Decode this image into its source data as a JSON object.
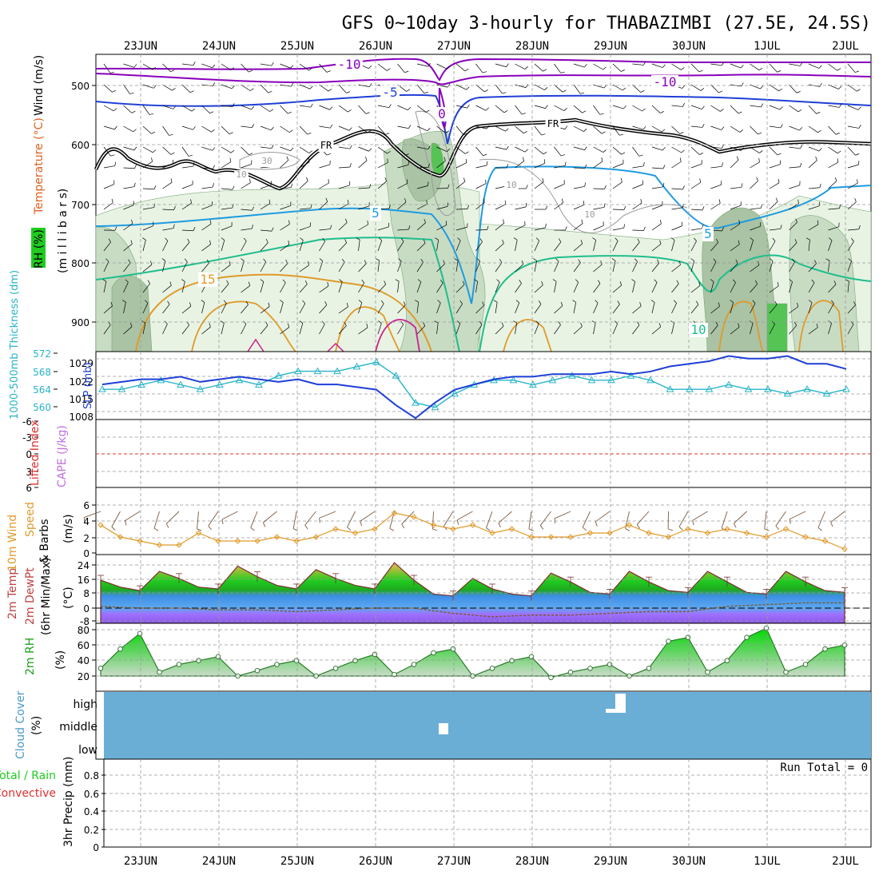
{
  "title": "GFS 0~10day 3-hourly for THABAZIMBI (27.5E, 24.5S)",
  "dates": [
    "23JUN",
    "24JUN",
    "25JUN",
    "26JUN",
    "27JUN",
    "28JUN",
    "29JUN",
    "30JUN",
    "1JUL",
    "2JUL"
  ],
  "colors": {
    "purple": "#8800bb",
    "blue": "#1f3fd6",
    "lightblue": "#1e9be0",
    "teal": "#1fbd8c",
    "orange": "#e09a2a",
    "magenta": "#cc1f8a",
    "cyan": "#28b4c8",
    "cloud": "#6aaed6",
    "green": "#1fcc1f",
    "dewpoint": "#7b5aa0"
  },
  "panels": {
    "upper": {
      "ylabel_rh": "RH (%)",
      "ylabel_temp": "Temperature (°C)",
      "ylabel_wind": "Wind (m/s)",
      "ylabel_mb": "(m i l l i b a r s)",
      "ticks": [
        "500",
        "600",
        "700",
        "800",
        "900"
      ],
      "contour_labels": [
        "-10",
        "-10",
        "-5",
        "5",
        "5",
        "10",
        "10",
        "10",
        "10",
        "15",
        "30",
        "FR",
        "FR",
        "0"
      ]
    },
    "slp": {
      "ylabel_thick": "1000-500mb Thickness (dm)",
      "ylabel_slp": "SLP (mb)",
      "left_ticks": [
        "572",
        "568",
        "564",
        "560"
      ],
      "right_ticks": [
        "1029",
        "1022",
        "1015",
        "1008"
      ]
    },
    "cape": {
      "ylabel_li": "Lifted Index",
      "ylabel_cape": "CAPE (J/kg)",
      "ticks": [
        "-6",
        "-3",
        "0",
        "3",
        "6"
      ]
    },
    "wind10": {
      "ylabel_a": "10m Wind",
      "ylabel_b": "Speed",
      "ylabel_c": "& Barbs",
      "units": "(m/s)",
      "ticks": [
        "6",
        "4",
        "2",
        "0"
      ]
    },
    "temp": {
      "ylabel_a": "2m Temp",
      "ylabel_b": "2m DewPt",
      "ylabel_c": "(6hr Min/Max)",
      "units": "(°C)",
      "ticks": [
        "24",
        "16",
        "8",
        "0",
        "-8"
      ]
    },
    "rh": {
      "ylabel": "2m RH",
      "units": "(%)",
      "ticks": [
        "80",
        "60",
        "40",
        "20"
      ]
    },
    "cloud": {
      "ylabel": "Cloud Cover",
      "units": "(%)",
      "levels": [
        "high",
        "middle",
        "low"
      ]
    },
    "precip": {
      "ylabel_a": "Total / Rain",
      "ylabel_b": "Convective",
      "ylabel_c": "3hr Precip (mm)",
      "ticks": [
        "0.8",
        "0.6",
        "0.4",
        "0.2",
        "0"
      ],
      "run_total": "Run Total = 0"
    }
  },
  "chart_data": [
    {
      "type": "line",
      "name": "SLP",
      "x_days": [
        0,
        0.25,
        0.5,
        0.75,
        1,
        1.25,
        1.5,
        1.75,
        2,
        2.25,
        2.5,
        2.75,
        3,
        3.25,
        3.5,
        3.75,
        4,
        4.25,
        4.5,
        4.75,
        5,
        5.25,
        5.5,
        5.75,
        6,
        6.25,
        6.5,
        6.75,
        7,
        7.25,
        7.5,
        7.75,
        8,
        8.25,
        8.5,
        8.75,
        9,
        9.25,
        9.5
      ],
      "values": [
        1020,
        1021,
        1022,
        1022,
        1023,
        1021,
        1022,
        1023,
        1022,
        1021,
        1022,
        1020,
        1020,
        1019,
        1018,
        1012,
        1007,
        1013,
        1018,
        1020,
        1022,
        1023,
        1023,
        1024,
        1024,
        1024,
        1025,
        1024,
        1025,
        1027,
        1028,
        1029,
        1031,
        1030,
        1030,
        1031,
        1028,
        1028,
        1026
      ],
      "ylim": [
        1008,
        1029
      ]
    },
    {
      "type": "line",
      "name": "1000-500mb Thickness",
      "x_days": [
        0,
        0.25,
        0.5,
        0.75,
        1,
        1.25,
        1.5,
        1.75,
        2,
        2.25,
        2.5,
        2.75,
        3,
        3.25,
        3.5,
        3.75,
        4,
        4.25,
        4.5,
        4.75,
        5,
        5.25,
        5.5,
        5.75,
        6,
        6.25,
        6.5,
        6.75,
        7,
        7.25,
        7.5,
        7.75,
        8,
        8.25,
        8.5,
        8.75,
        9,
        9.25,
        9.5
      ],
      "values": [
        564,
        564,
        565,
        566,
        565,
        564,
        565,
        566,
        565,
        567,
        568,
        568,
        568,
        569,
        570,
        567,
        561,
        560,
        563,
        565,
        566,
        566,
        565,
        566,
        567,
        566,
        566,
        567,
        566,
        564,
        564,
        564,
        565,
        564,
        564,
        563,
        564,
        563,
        564
      ],
      "ylim": [
        558,
        572
      ]
    },
    {
      "type": "line",
      "name": "10m Wind Speed",
      "x_days": [
        0,
        0.25,
        0.5,
        0.75,
        1,
        1.25,
        1.5,
        1.75,
        2,
        2.25,
        2.5,
        2.75,
        3,
        3.25,
        3.5,
        3.75,
        4,
        4.25,
        4.5,
        4.75,
        5,
        5.25,
        5.5,
        5.75,
        6,
        6.25,
        6.5,
        6.75,
        7,
        7.25,
        7.5,
        7.75,
        8,
        8.25,
        8.5,
        8.75,
        9,
        9.25,
        9.5
      ],
      "values": [
        3.5,
        2,
        1.5,
        1,
        1,
        2.5,
        1.5,
        1.5,
        1.5,
        2,
        1.5,
        2,
        3,
        2.5,
        3,
        5,
        4.5,
        3.5,
        3,
        3.5,
        2.5,
        3,
        2,
        2,
        2,
        2.5,
        2.5,
        3.5,
        2.5,
        2,
        3,
        2.5,
        3,
        2.5,
        2,
        3,
        2,
        1.5,
        0.5
      ],
      "ylim": [
        0,
        8
      ]
    },
    {
      "type": "area",
      "name": "2m Temp",
      "x_days": [
        0,
        0.25,
        0.5,
        0.75,
        1,
        1.25,
        1.5,
        1.75,
        2,
        2.25,
        2.5,
        2.75,
        3,
        3.25,
        3.5,
        3.75,
        4,
        4.25,
        4.5,
        4.75,
        5,
        5.25,
        5.5,
        5.75,
        6,
        6.25,
        6.5,
        6.75,
        7,
        7.25,
        7.5,
        7.75,
        8,
        8.25,
        8.5,
        8.75,
        9,
        9.25,
        9.5
      ],
      "values": [
        16,
        12,
        10,
        21,
        17,
        12,
        11,
        24,
        18,
        13,
        11,
        22,
        17,
        13,
        11,
        26,
        16,
        8,
        7,
        17,
        11,
        8,
        7,
        20,
        15,
        9,
        8,
        21,
        15,
        10,
        9,
        21,
        15,
        9,
        8,
        21,
        15,
        10,
        9
      ],
      "ylim": [
        -10,
        30
      ]
    },
    {
      "type": "line",
      "name": "2m DewPt",
      "x_days": [
        0,
        0.5,
        1,
        1.5,
        2,
        2.5,
        3,
        3.5,
        4,
        4.5,
        5,
        5.5,
        6,
        6.5,
        7,
        7.5,
        8,
        8.5,
        9,
        9.5
      ],
      "values": [
        1,
        0,
        0,
        -1,
        -1,
        -2,
        -1,
        0,
        0,
        -3,
        -5,
        -4,
        -4,
        -3,
        -2,
        -2,
        1,
        2,
        3,
        3
      ],
      "ylim": [
        -10,
        30
      ]
    },
    {
      "type": "area",
      "name": "2m RH",
      "x_days": [
        0,
        0.25,
        0.5,
        0.75,
        1,
        1.25,
        1.5,
        1.75,
        2,
        2.25,
        2.5,
        2.75,
        3,
        3.25,
        3.5,
        3.75,
        4,
        4.25,
        4.5,
        4.75,
        5,
        5.25,
        5.5,
        5.75,
        6,
        6.25,
        6.5,
        6.75,
        7,
        7.25,
        7.5,
        7.75,
        8,
        8.25,
        8.5,
        8.75,
        9,
        9.25,
        9.5
      ],
      "values": [
        30,
        55,
        75,
        25,
        35,
        40,
        45,
        20,
        27,
        35,
        40,
        20,
        30,
        40,
        48,
        22,
        35,
        50,
        55,
        20,
        30,
        40,
        45,
        18,
        25,
        30,
        35,
        20,
        30,
        65,
        70,
        25,
        40,
        70,
        82,
        25,
        35,
        55,
        60
      ],
      "ylim": [
        10,
        90
      ]
    },
    {
      "type": "bar",
      "name": "Cloud Cover",
      "categories": [
        "27JUN 00Z middle",
        "29JUN 03Z high"
      ],
      "values": [
        20,
        30
      ],
      "ylim": [
        0,
        100
      ]
    },
    {
      "type": "bar",
      "name": "3hr Precip",
      "values": [],
      "ylim": [
        0,
        0.9
      ]
    }
  ]
}
